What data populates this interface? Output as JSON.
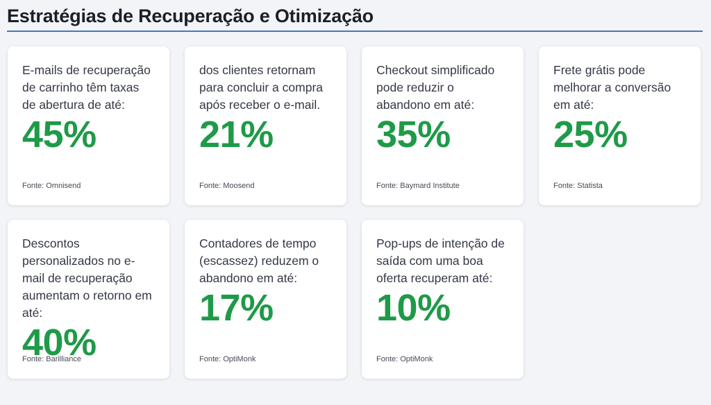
{
  "title": "Estratégias de Recuperação e Otimização",
  "colors": {
    "accent": "#4a74c2",
    "stat": "#1f9a48"
  },
  "cards": [
    {
      "text": "E-mails de recuperação de carrinho têm taxas de abertura de até:",
      "stat": "45%",
      "source": "Fonte: Omnisend"
    },
    {
      "text": "dos clientes retornam para concluir a compra após receber o e-mail.",
      "stat": "21%",
      "source": "Fonte: Moosend"
    },
    {
      "text": "Checkout simplificado pode reduzir o abandono em até:",
      "stat": "35%",
      "source": "Fonte: Baymard Institute"
    },
    {
      "text": "Frete grátis pode melhorar a conversão em até:",
      "stat": "25%",
      "source": "Fonte: Statista"
    },
    {
      "text": "Descontos personalizados no e-mail de recuperação aumentam o retorno em até:",
      "stat": "40%",
      "source": "Fonte: Barilliance"
    },
    {
      "text": "Contadores de tempo (escassez) reduzem o abandono em até:",
      "stat": "17%",
      "source": "Fonte: OptiMonk"
    },
    {
      "text": "Pop-ups de intenção de saída com uma boa oferta recuperam até:",
      "stat": "10%",
      "source": "Fonte: OptiMonk"
    }
  ]
}
